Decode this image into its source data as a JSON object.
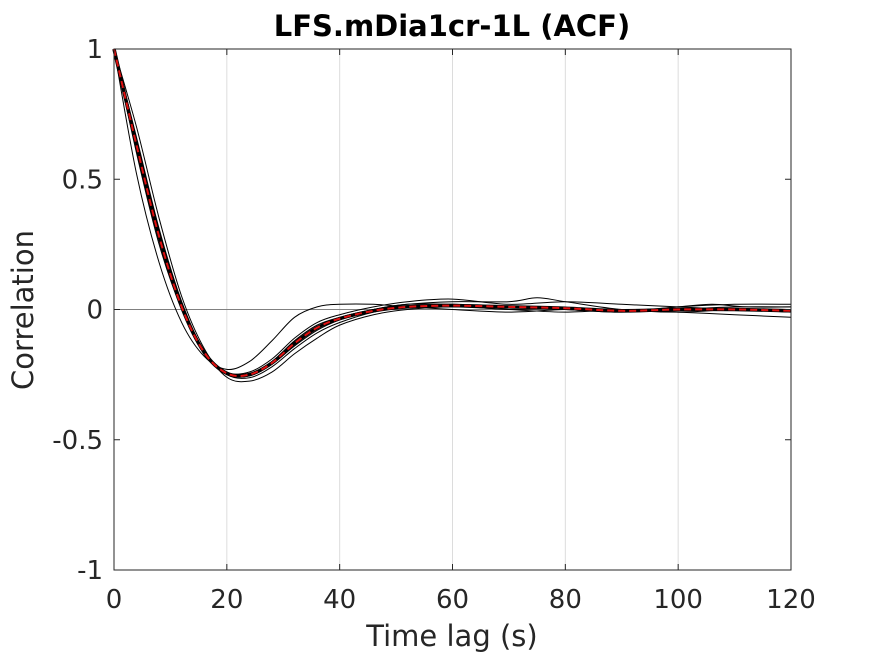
{
  "chart_data": {
    "type": "line",
    "title": "LFS.mDia1cr-1L (ACF)",
    "xlabel": "Time lag (s)",
    "ylabel": "Correlation",
    "xlim": [
      0,
      120
    ],
    "ylim": [
      -1,
      1
    ],
    "xticks": [
      0,
      20,
      40,
      60,
      80,
      100,
      120
    ],
    "yticks": [
      -1,
      -0.5,
      0,
      0.5,
      1
    ],
    "xtick_labels": [
      "0",
      "20",
      "40",
      "60",
      "80",
      "100",
      "120"
    ],
    "ytick_labels": [
      "-1",
      "-0.5",
      "0",
      "0.5",
      "1"
    ],
    "grid": "vertical",
    "zero_line": true,
    "colors": {
      "individual": "#000000",
      "mean": "#e01010",
      "grid": "#dcdcdc",
      "zero_line": "#808080",
      "axes": "#262626"
    },
    "series": [
      {
        "role": "individual",
        "x": [
          0,
          4,
          8,
          12,
          16,
          20,
          24,
          28,
          32,
          36,
          40,
          46,
          52,
          60,
          70,
          80,
          90,
          100,
          110,
          120
        ],
        "y": [
          1,
          0.65,
          0.3,
          0.02,
          -0.17,
          -0.245,
          -0.25,
          -0.2,
          -0.12,
          -0.06,
          -0.03,
          0,
          0.02,
          0.02,
          0.01,
          0.0,
          -0.01,
          0.0,
          0.01,
          0.01
        ]
      },
      {
        "role": "individual",
        "x": [
          0,
          4,
          8,
          12,
          16,
          20,
          24,
          28,
          32,
          36,
          40,
          46,
          52,
          60,
          70,
          80,
          90,
          100,
          110,
          120
        ],
        "y": [
          1,
          0.52,
          0.18,
          -0.05,
          -0.18,
          -0.23,
          -0.2,
          -0.12,
          -0.03,
          0.01,
          0.02,
          0.02,
          0.01,
          0.0,
          -0.01,
          0.0,
          0.0,
          -0.01,
          -0.02,
          -0.03
        ]
      },
      {
        "role": "individual",
        "x": [
          0,
          4,
          8,
          12,
          16,
          20,
          24,
          28,
          32,
          36,
          40,
          46,
          52,
          60,
          70,
          80,
          90,
          100,
          110,
          120
        ],
        "y": [
          1,
          0.7,
          0.35,
          0.05,
          -0.15,
          -0.26,
          -0.275,
          -0.24,
          -0.17,
          -0.11,
          -0.06,
          -0.02,
          0.0,
          0.01,
          0.0,
          -0.01,
          0.0,
          0.0,
          0.0,
          -0.01
        ]
      },
      {
        "role": "individual",
        "x": [
          0,
          4,
          8,
          12,
          16,
          20,
          24,
          28,
          32,
          36,
          40,
          46,
          52,
          60,
          70,
          80,
          90,
          100,
          110,
          120
        ],
        "y": [
          1,
          0.62,
          0.27,
          0.01,
          -0.16,
          -0.24,
          -0.24,
          -0.19,
          -0.11,
          -0.05,
          -0.02,
          0.01,
          0.03,
          0.04,
          0.02,
          0.03,
          0.02,
          0.01,
          0.0,
          -0.01
        ]
      },
      {
        "role": "individual",
        "x": [
          0,
          4,
          8,
          12,
          16,
          20,
          24,
          28,
          32,
          36,
          40,
          46,
          52,
          60,
          70,
          75,
          80,
          90,
          100,
          110,
          120
        ],
        "y": [
          1,
          0.6,
          0.25,
          0.0,
          -0.17,
          -0.25,
          -0.255,
          -0.21,
          -0.14,
          -0.08,
          -0.04,
          0.0,
          0.02,
          0.03,
          0.03,
          0.045,
          0.03,
          0.0,
          -0.01,
          0.0,
          0.0
        ]
      },
      {
        "role": "individual",
        "x": [
          0,
          4,
          8,
          12,
          16,
          20,
          24,
          28,
          32,
          36,
          40,
          46,
          52,
          60,
          70,
          80,
          90,
          100,
          110,
          120
        ],
        "y": [
          1,
          0.66,
          0.31,
          0.03,
          -0.16,
          -0.25,
          -0.262,
          -0.22,
          -0.15,
          -0.09,
          -0.05,
          -0.01,
          0.01,
          0.02,
          0.01,
          0.0,
          -0.01,
          0.01,
          0.02,
          0.02
        ]
      },
      {
        "role": "individual",
        "x": [
          0,
          4,
          8,
          12,
          16,
          20,
          24,
          28,
          32,
          36,
          40,
          46,
          52,
          60,
          70,
          80,
          90,
          100,
          106,
          112,
          120
        ],
        "y": [
          1,
          0.64,
          0.29,
          0.02,
          -0.165,
          -0.245,
          -0.25,
          -0.205,
          -0.13,
          -0.07,
          -0.035,
          0.0,
          0.015,
          0.015,
          0.0,
          0.005,
          -0.005,
          0.01,
          0.02,
          0.01,
          0.01
        ]
      },
      {
        "role": "mean",
        "x": [
          0,
          4,
          8,
          12,
          16,
          20,
          24,
          28,
          32,
          36,
          40,
          46,
          52,
          60,
          70,
          80,
          90,
          100,
          110,
          120
        ],
        "y": [
          1,
          0.63,
          0.28,
          0.01,
          -0.165,
          -0.245,
          -0.25,
          -0.205,
          -0.13,
          -0.07,
          -0.035,
          -0.005,
          0.01,
          0.015,
          0.01,
          0.005,
          -0.005,
          0.0,
          0.0,
          -0.005
        ]
      }
    ]
  }
}
